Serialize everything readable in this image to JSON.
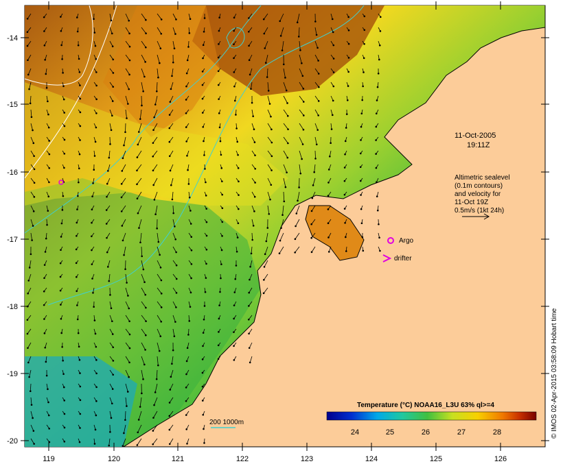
{
  "map": {
    "date_line": "11-Oct-2005",
    "time_line": "19:11Z",
    "legend_text": [
      "Altimetric sealevel",
      "(0.1m contours)",
      "and velocity for",
      "11-Oct 19Z",
      "0.5m/s (1kt 24h)"
    ],
    "argo_label": "Argo",
    "drifter_label": "drifter",
    "depth_label": "200  1000m",
    "colorbar_title": "Temperature (°C) NOAA16_L3U 63% ql>=4",
    "colorbar_ticks": [
      "24",
      "25",
      "26",
      "27",
      "28"
    ],
    "credit": "© IMOS 02-Apr-2015 03:58:09 Hobart time",
    "x_ticks": [
      "119",
      "120",
      "121",
      "122",
      "123",
      "124",
      "125",
      "126"
    ],
    "y_ticks": [
      "-14",
      "-15",
      "-16",
      "-17",
      "-18",
      "-19",
      "-20"
    ],
    "colors": {
      "land": "#fccc99",
      "contour": "#40d0d0",
      "marker": "#e000e0"
    }
  }
}
